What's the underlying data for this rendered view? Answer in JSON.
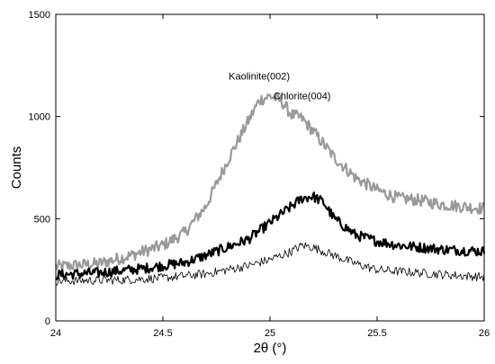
{
  "chart_data": {
    "type": "line",
    "xlabel": "2θ (°)",
    "ylabel": "Counts",
    "xlim": [
      24,
      26
    ],
    "ylim": [
      0,
      1500
    ],
    "xticks": [
      24,
      24.5,
      25,
      25.5,
      26
    ],
    "yticks": [
      0,
      500,
      1000,
      1500
    ],
    "grid": false,
    "annotations": [
      {
        "text": "Kaolinite(002)",
        "x": 24.95,
        "y": 1180
      },
      {
        "text": "Chlorite(004)",
        "x": 25.15,
        "y": 1085
      }
    ],
    "series": [
      {
        "color": "#9a9a9a",
        "line_width": 2.2,
        "noise": 30,
        "points": [
          [
            24.0,
            265
          ],
          [
            24.2,
            280
          ],
          [
            24.35,
            320
          ],
          [
            24.5,
            370
          ],
          [
            24.6,
            430
          ],
          [
            24.7,
            560
          ],
          [
            24.8,
            780
          ],
          [
            24.9,
            980
          ],
          [
            24.95,
            1080
          ],
          [
            25.0,
            1100
          ],
          [
            25.05,
            1080
          ],
          [
            25.1,
            1010
          ],
          [
            25.15,
            990
          ],
          [
            25.2,
            930
          ],
          [
            25.3,
            800
          ],
          [
            25.4,
            700
          ],
          [
            25.5,
            640
          ],
          [
            25.6,
            600
          ],
          [
            25.7,
            590
          ],
          [
            25.8,
            570
          ],
          [
            25.9,
            560
          ],
          [
            26.0,
            550
          ]
        ]
      },
      {
        "color": "#000000",
        "line_width": 2.2,
        "noise": 25,
        "points": [
          [
            24.0,
            225
          ],
          [
            24.2,
            235
          ],
          [
            24.4,
            255
          ],
          [
            24.6,
            285
          ],
          [
            24.7,
            320
          ],
          [
            24.8,
            360
          ],
          [
            24.9,
            400
          ],
          [
            25.0,
            480
          ],
          [
            25.1,
            560
          ],
          [
            25.15,
            600
          ],
          [
            25.2,
            610
          ],
          [
            25.25,
            580
          ],
          [
            25.3,
            500
          ],
          [
            25.4,
            420
          ],
          [
            25.5,
            390
          ],
          [
            25.6,
            370
          ],
          [
            25.7,
            360
          ],
          [
            25.8,
            350
          ],
          [
            25.9,
            345
          ],
          [
            26.0,
            340
          ]
        ]
      },
      {
        "color": "#000000",
        "line_width": 0.8,
        "noise": 22,
        "points": [
          [
            24.0,
            195
          ],
          [
            24.3,
            200
          ],
          [
            24.5,
            210
          ],
          [
            24.7,
            230
          ],
          [
            24.9,
            270
          ],
          [
            25.0,
            300
          ],
          [
            25.1,
            340
          ],
          [
            25.15,
            370
          ],
          [
            25.2,
            360
          ],
          [
            25.3,
            320
          ],
          [
            25.4,
            280
          ],
          [
            25.5,
            250
          ],
          [
            25.7,
            235
          ],
          [
            25.9,
            220
          ],
          [
            26.0,
            215
          ]
        ]
      }
    ]
  }
}
